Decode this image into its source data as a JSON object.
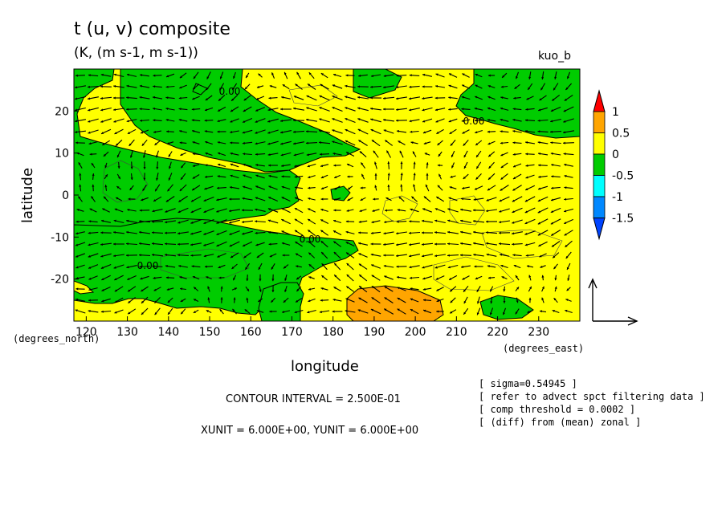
{
  "chart_data": {
    "type": "heatmap",
    "title": "t (u, v) composite",
    "subtitle": "(K, (m s-1, m s-1))",
    "identifier": "kuo_b",
    "xlabel": "longitude",
    "ylabel": "latitude",
    "x_unit_label": "(degrees_east)",
    "y_unit_label": "(degrees_north)",
    "xlim": [
      117,
      240
    ],
    "ylim": [
      -30,
      30
    ],
    "x_ticks": [
      120,
      130,
      140,
      150,
      160,
      170,
      180,
      190,
      200,
      210,
      220,
      230
    ],
    "y_ticks": [
      -20,
      -10,
      0,
      10,
      20
    ],
    "colorbar": {
      "labels": [
        "1",
        "0.5",
        "0",
        "-0.5",
        "-1",
        "-1.5"
      ],
      "levels": [
        1,
        0.5,
        0,
        -0.5,
        -1,
        -1.5
      ],
      "colors": [
        "#ff0000",
        "#ffa500",
        "#ffff00",
        "#00cc00",
        "#00ffff",
        "#0088ff",
        "#0044ff"
      ]
    },
    "contour_labels": [
      "0.00",
      "0.00",
      "0.00",
      "0.00"
    ],
    "contour_interval": "CONTOUR INTERVAL = 2.500E-01",
    "vector_units": "XUNIT = 6.000E+00, YUNIT = 6.000E+00",
    "regions": [
      {
        "level": "0 to 0.5",
        "color": "#ffff00"
      },
      {
        "level": "-0.5 to 0",
        "color": "#00cc00"
      },
      {
        "level": "0.5 to 1",
        "color": "#ffa500"
      }
    ]
  },
  "notes": [
    "[ sigma=0.54945 ]",
    "[ refer to advect spct filtering data ]",
    "[ comp threshold = 0.0002 ]",
    "[ (diff) from (mean) zonal ]"
  ]
}
